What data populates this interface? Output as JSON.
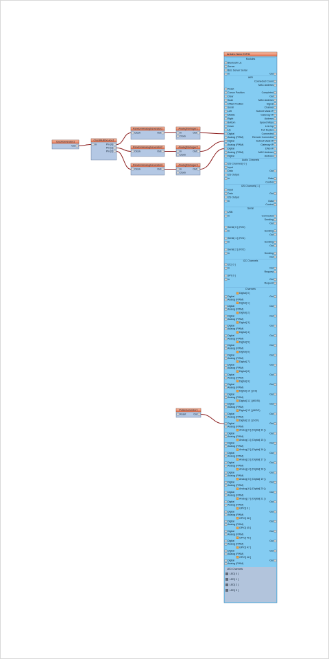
{
  "nodes": [
    {
      "label": "ClockGenerator1",
      "inputs": [],
      "outputs": [
        "Out"
      ]
    },
    {
      "label": "ClockMultiSource1",
      "inputs": [
        "In"
      ],
      "outputs": [
        "Pin [0]",
        "Pin [1]",
        "Pin [2]"
      ]
    },
    {
      "label": "RandomAnalogGenerator1",
      "inputs": [
        "Clock"
      ],
      "outputs": [
        "Out"
      ]
    },
    {
      "label": "RandomAnalogGenerator2",
      "inputs": [
        "Clock"
      ],
      "outputs": [
        "Out"
      ]
    },
    {
      "label": "RandomAnalogGenerator3",
      "inputs": [
        "Clock"
      ],
      "outputs": [
        "Out"
      ]
    },
    {
      "label": "AnalogToInteger1",
      "inputs": [
        "In",
        "Clock"
      ],
      "outputs": [
        "Out"
      ]
    },
    {
      "label": "AnalogToInteger2",
      "inputs": [
        "In",
        "Clock"
      ],
      "outputs": [
        "Out"
      ]
    },
    {
      "label": "AnalogToInteger3",
      "inputs": [
        "In",
        "Clock"
      ],
      "outputs": [
        "Out"
      ]
    },
    {
      "label": "PulseGenerator1",
      "inputs": [
        "Reset"
      ],
      "outputs": [
        "Out"
      ]
    }
  ],
  "board": {
    "title": "Arduino Nano ESP32",
    "sections": [
      {
        "title": "Modules",
        "rows": [
          {
            "left": "Bluetooth LE"
          },
          {
            "left": "Server"
          },
          {
            "left": "BLE Server Serial"
          },
          {
            "left": "In",
            "right": "Out"
          }
        ]
      },
      {
        "title": "WiFi",
        "rows": [
          {
            "right": "Connected Count"
          },
          {
            "right": "MAC Address"
          },
          {
            "left": "Reset"
          },
          {
            "left": "Cursor Position",
            "right": "Completed"
          },
          {
            "left": "Clear",
            "right": "Out"
          },
          {
            "left": "Scan",
            "right": "MAC Address"
          },
          {
            "left": "Offset Position",
            "right": "Signal"
          },
          {
            "left": "Scroll",
            "right": "Channel"
          },
          {
            "left": "Left",
            "right": "Subnet Mask IP"
          },
          {
            "left": "Middle",
            "right": "Gateway IP"
          },
          {
            "left": "Right",
            "right": "Address"
          },
          {
            "left": "Bottom",
            "right": "Speed Mbps"
          },
          {
            "left": "Down",
            "right": "Link Up"
          },
          {
            "left": "Up",
            "right": "Full Duplex"
          },
          {
            "left": "Digital",
            "right": "Connected"
          },
          {
            "left": "Analog (PWM)",
            "right": "Remote Connected"
          },
          {
            "left": "Digital",
            "right": "Subnet Mask IP"
          },
          {
            "left": "Analog (PWM)",
            "right": "Gateway IP"
          },
          {
            "left": "Digital",
            "right": "DNS IP"
          },
          {
            "left": "Analog (PWM)",
            "right": "MAC Address"
          },
          {
            "left": "Digital",
            "right": "Address"
          }
        ]
      },
      {
        "title": "Audio Channels",
        "rows": [
          {
            "left": "I2S Channels[ 0 ]"
          },
          {
            "left": "Input"
          },
          {
            "left": "Data",
            "right": "Out"
          },
          {
            "left": "I2S Output"
          },
          {
            "left": "In",
            "right": "Data"
          },
          {
            "right": "Control"
          }
        ]
      },
      {
        "title": "I2S Channels[ 1 ]",
        "rows": [
          {
            "left": "Input"
          },
          {
            "left": "Data",
            "right": "Out"
          },
          {
            "left": "I2S Output"
          },
          {
            "left": "In",
            "right": "Data"
          },
          {
            "right": "Control"
          }
        ]
      },
      {
        "title": "Serial",
        "rows": [
          {
            "left": "USB"
          },
          {
            "left": "In",
            "right": "Connected"
          },
          {
            "right": "Sending"
          },
          {
            "right": "Out"
          },
          {
            "left": "Serial[ 0 ] (RX0)"
          },
          {
            "left": "In",
            "right": "Sending"
          },
          {
            "right": "Out"
          },
          {
            "left": "Serial[ 1 ] (RX1)"
          },
          {
            "left": "In",
            "right": "Sending"
          },
          {
            "right": "Out"
          },
          {
            "left": "Serial[ 2 ] (RX2)"
          },
          {
            "left": "In",
            "right": "Sending"
          },
          {
            "right": "Out"
          }
        ]
      },
      {
        "title": "I2C Channels",
        "rows": [
          {
            "left": "I2C[ 0 ]"
          },
          {
            "left": "In",
            "right": "Out"
          },
          {
            "right": "Request"
          },
          {
            "left": "SPI[ 0 ]"
          },
          {
            "left": "In",
            "right": "Out"
          },
          {
            "right": "Request"
          }
        ]
      }
    ],
    "channels_title": "Channels",
    "channels": [
      "Digital[ 0 ]",
      "Digital[ 1 ]",
      "Digital[ 2 ]",
      "Digital[ 3 ]",
      "Digital[ 4 ]",
      "Digital[ 5 ]",
      "Digital[ 6 ]",
      "Digital[ 7 ]",
      "Digital[ 8 ]",
      "Digital[ 9 ]",
      "Digital[ 10 ] (SS)",
      "Digital[ 11 ] (MOSI)",
      "Digital[ 12 ] (MISO)",
      "Digital[ 13 ] (SCK)",
      "Analog[ 0 ] (Digital[ 14 ])",
      "Analog[ 1 ] (Digital[ 15 ])",
      "Analog[ 2 ] (Digital[ 16 ])",
      "Analog[ 3 ] (Digital[ 17 ])",
      "Analog[ 4 ] (Digital[ 18 ])",
      "Analog[ 5 ] (Digital[ 19 ])",
      "Analog[ 6 ] (Digital[ 20 ])",
      "Analog[ 7 ] (Digital[ 21 ])",
      "GPIO[ 0 ]",
      "GPIO[ 38 ]",
      "GPIO[ 45 ]",
      "GPIO[ 46 ]",
      "GPIO[ 47 ]",
      "GPIO[ 48 ]"
    ],
    "channel_pins": [
      "Digital",
      "Analog (PWM)"
    ],
    "channel_out": "Out",
    "bottom": {
      "title": "LED Channels",
      "items": [
        "LED[ 0 ]",
        "LED[ 1 ]",
        "LED[ 2 ]",
        "LED[ 3 ]"
      ]
    }
  }
}
